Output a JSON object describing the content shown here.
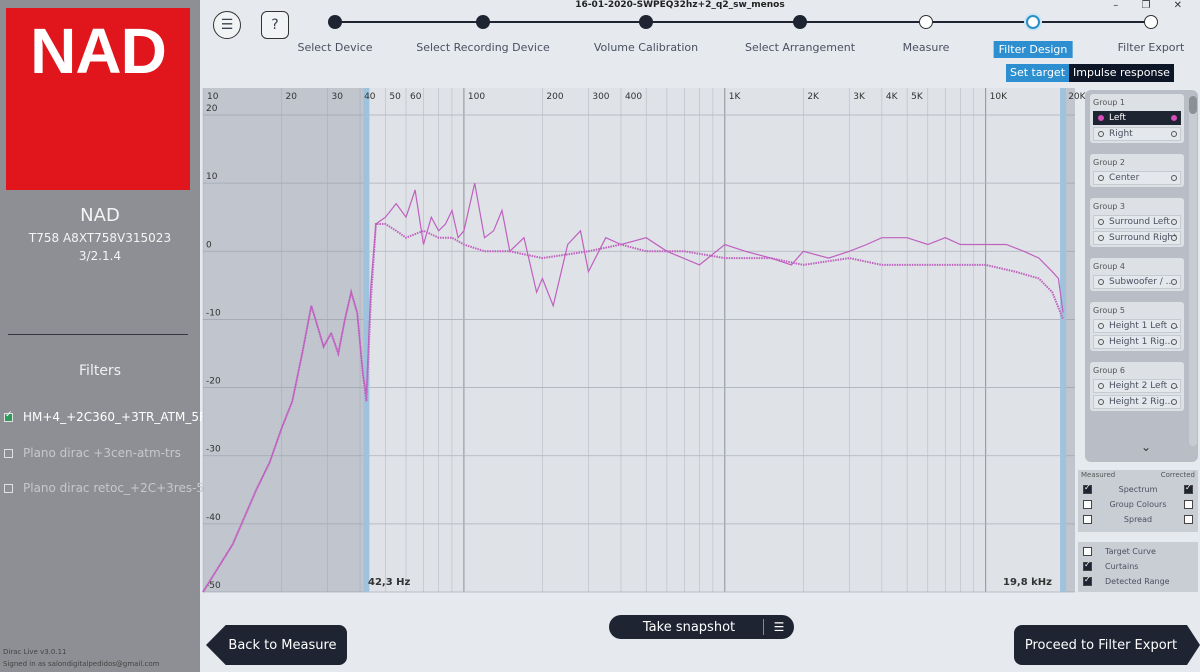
{
  "app": {
    "file_title": "16-01-2020-SWPEQ32hz+2_q2_sw_menos",
    "window_controls": "– ❐ ✕",
    "version": "Dirac Live v3.0.11",
    "signed_in": "Signed in as salondigitalpedidos@gmail.com"
  },
  "device": {
    "logo": "NAD",
    "name": "NAD",
    "model": "T758 A8XT758V315023",
    "config": "3/2.1.4"
  },
  "filters": {
    "title": "Filters",
    "items": [
      {
        "label": "HM+4_+2C360_+3TR_ATM_5P",
        "checked": true
      },
      {
        "label": "Plano dirac +3cen-atm-trs",
        "checked": false
      },
      {
        "label": "Plano dirac retoc_+2C+3res-5P",
        "checked": false
      }
    ]
  },
  "toolbar": {
    "menu_icon": "☰",
    "help_icon": "?"
  },
  "steps": [
    {
      "label": "Select Device",
      "state": "done"
    },
    {
      "label": "Select Recording Device",
      "state": "done"
    },
    {
      "label": "Volume Calibration",
      "state": "done"
    },
    {
      "label": "Select Arrangement",
      "state": "done"
    },
    {
      "label": "Measure",
      "state": "todo"
    },
    {
      "label": "Filter Design",
      "state": "current"
    },
    {
      "label": "Filter Export",
      "state": "todo"
    }
  ],
  "sub_tabs": {
    "set_target": "Set target",
    "impulse_response": "Impulse response"
  },
  "chart_data": {
    "type": "line",
    "x_scale": "log",
    "xlim": [
      10,
      22000
    ],
    "ylim": [
      -50,
      25
    ],
    "x_ticks": [
      {
        "v": 10,
        "label": "10"
      },
      {
        "v": 20,
        "label": "20"
      },
      {
        "v": 30,
        "label": "30"
      },
      {
        "v": 40,
        "label": "40"
      },
      {
        "v": 50,
        "label": "50"
      },
      {
        "v": 60,
        "label": "60"
      },
      {
        "v": 100,
        "label": "100"
      },
      {
        "v": 200,
        "label": "200"
      },
      {
        "v": 300,
        "label": "300"
      },
      {
        "v": 400,
        "label": "400"
      },
      {
        "v": 1000,
        "label": "1K"
      },
      {
        "v": 2000,
        "label": "2K"
      },
      {
        "v": 3000,
        "label": "3K"
      },
      {
        "v": 4000,
        "label": "4K"
      },
      {
        "v": 5000,
        "label": "5K"
      },
      {
        "v": 10000,
        "label": "10K"
      },
      {
        "v": 20000,
        "label": "20K"
      }
    ],
    "y_ticks": [
      20,
      10,
      0,
      -10,
      -20,
      -30,
      -40,
      -50
    ],
    "curtain_low_hz": 42.3,
    "curtain_high_hz": 19800,
    "curtain_low_label": "42,3 Hz",
    "curtain_high_label": "19,8 kHz",
    "series": [
      {
        "color": "#c060c0",
        "style": "thin",
        "x": [
          10,
          13,
          16,
          18,
          20,
          22,
          24,
          26,
          27,
          29,
          31,
          33,
          35,
          37,
          39,
          41,
          42.3,
          44,
          46,
          50,
          55,
          60,
          65,
          70,
          75,
          80,
          85,
          90,
          95,
          100,
          110,
          120,
          130,
          140,
          150,
          170,
          190,
          200,
          220,
          250,
          280,
          300,
          350,
          400,
          500,
          600,
          800,
          1000,
          1200,
          1500,
          1800,
          2000,
          2500,
          3000,
          3500,
          4000,
          5000,
          6000,
          7000,
          8000,
          10000,
          12000,
          14000,
          16000,
          18000,
          19000,
          19800
        ],
        "y": [
          -50,
          -43,
          -35,
          -31,
          -26,
          -22,
          -15,
          -8,
          -10,
          -14,
          -12,
          -15,
          -10,
          -6,
          -9,
          -18,
          -21,
          -5,
          4,
          5,
          7,
          5,
          9,
          1,
          5,
          3,
          4,
          6,
          2,
          3,
          10,
          2,
          3,
          6,
          0,
          2,
          -6,
          -4,
          -8,
          1,
          3,
          -3,
          2,
          1,
          2,
          0,
          -2,
          1,
          0,
          -1,
          -2,
          0,
          -1,
          0,
          1,
          2,
          2,
          1,
          2,
          1,
          1,
          1,
          0,
          -1,
          -3,
          -4,
          -9
        ]
      },
      {
        "color": "#c060c0",
        "style": "dotted",
        "x": [
          10,
          13,
          16,
          18,
          20,
          22,
          24,
          26,
          27,
          29,
          31,
          33,
          35,
          37,
          39,
          41,
          42.3,
          44,
          46,
          50,
          55,
          60,
          70,
          80,
          90,
          100,
          120,
          150,
          200,
          300,
          400,
          500,
          700,
          1000,
          1500,
          2000,
          3000,
          4000,
          5000,
          7000,
          10000,
          13000,
          16000,
          18000,
          19800
        ],
        "y": [
          -50,
          -43,
          -35,
          -31,
          -26,
          -22,
          -15,
          -8,
          -10,
          -14,
          -12,
          -15,
          -10,
          -6,
          -9,
          -18,
          -22,
          -7,
          4,
          4,
          3,
          2,
          3,
          2,
          2,
          1,
          0,
          0,
          -1,
          0,
          1,
          0,
          0,
          -1,
          -1,
          -2,
          -1,
          -2,
          -2,
          -2,
          -2,
          -3,
          -4,
          -6,
          -10
        ]
      }
    ]
  },
  "groups": [
    {
      "title": "Group 1",
      "channels": [
        {
          "label": "Left",
          "selected": true
        },
        {
          "label": "Right",
          "selected": false
        }
      ]
    },
    {
      "title": "Group 2",
      "channels": [
        {
          "label": "Center",
          "selected": false
        }
      ]
    },
    {
      "title": "Group 3",
      "channels": [
        {
          "label": "Surround Left",
          "selected": false
        },
        {
          "label": "Surround Right",
          "selected": false
        }
      ]
    },
    {
      "title": "Group 4",
      "channels": [
        {
          "label": "Subwoofer / ...",
          "selected": false
        }
      ]
    },
    {
      "title": "Group 5",
      "channels": [
        {
          "label": "Height 1 Left ...",
          "selected": false
        },
        {
          "label": "Height 1 Rig...",
          "selected": false
        }
      ]
    },
    {
      "title": "Group 6",
      "channels": [
        {
          "label": "Height 2 Left ...",
          "selected": false
        },
        {
          "label": "Height 2 Rig...",
          "selected": false
        }
      ]
    }
  ],
  "options": {
    "measured_label": "Measured",
    "corrected_label": "Corrected",
    "rows": [
      {
        "label": "Spectrum",
        "measured": true,
        "corrected": true
      },
      {
        "label": "Group Colours",
        "measured": false,
        "corrected": false
      },
      {
        "label": "Spread",
        "measured": false,
        "corrected": false
      }
    ]
  },
  "view_options": [
    {
      "label": "Target Curve",
      "checked": false
    },
    {
      "label": "Curtains",
      "checked": true
    },
    {
      "label": "Detected Range",
      "checked": true
    }
  ],
  "bottom": {
    "back_label": "Back to Measure",
    "snapshot_label": "Take snapshot",
    "snapshot_icon": "☰",
    "proceed_label": "Proceed to Filter Export"
  }
}
